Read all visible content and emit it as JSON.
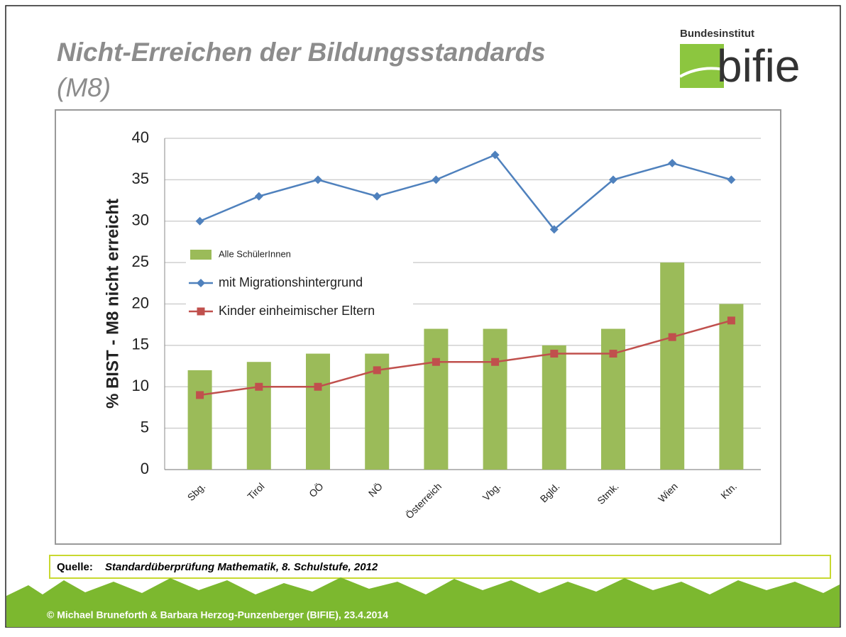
{
  "slide": {
    "title_lines": [
      "Nicht-Erreichen der Bildungsstandards",
      "(M8)"
    ],
    "logo": {
      "top": "Bundesinstitut",
      "name": "bifie"
    },
    "source": {
      "label": "Quelle:",
      "text": "Standardüberprüfung Mathematik, 8. Schulstufe, 2012"
    },
    "footer": "© Michael Bruneforth & Barbara Herzog-Punzenberger (BIFIE), 23.4.2014"
  },
  "chart_data": {
    "type": "combo",
    "y_label": "% BIST - M8 nicht erreicht",
    "categories": [
      "Sbg.",
      "Tirol",
      "OÖ",
      "NÖ",
      "Österreich",
      "Vbg.",
      "Bgld.",
      "Stmk.",
      "Wien",
      "Ktn."
    ],
    "series": [
      {
        "name": "Alle SchülerInnen",
        "kind": "bar",
        "color": "#9bbb59",
        "values": [
          12,
          13,
          14,
          14,
          17,
          17,
          15,
          17,
          25,
          20
        ]
      },
      {
        "name": "mit Migrationshintergrund",
        "kind": "line",
        "marker": "diamond",
        "color": "#4f81bd",
        "values": [
          30,
          33,
          35,
          33,
          35,
          38,
          29,
          35,
          37,
          35
        ]
      },
      {
        "name": "Kinder einheimischer Eltern",
        "kind": "line",
        "marker": "square",
        "color": "#c0504d",
        "values": [
          9,
          10,
          10,
          12,
          13,
          13,
          14,
          14,
          16,
          18
        ]
      }
    ],
    "ylim": [
      0,
      40
    ],
    "yticks": [
      0,
      5,
      10,
      15,
      20,
      25,
      30,
      35,
      40
    ],
    "grid": true,
    "legend": "center-left"
  }
}
